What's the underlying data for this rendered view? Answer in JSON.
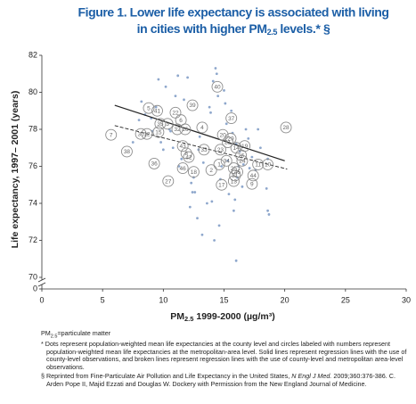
{
  "chart_data": {
    "type": "scatter",
    "title": {
      "line1": "Figure 1. Lower life expectancy is associated with living",
      "line2": "in cities with higher PM",
      "line2_sub": "2.5",
      "line2_end": " levels.* §"
    },
    "x_label": {
      "main": "PM",
      "sub": "2.5",
      "end": " 1999-2000 (µg/m³)"
    },
    "y_label": "Life expectancy, 1997– 2001 (years)",
    "xlim": [
      0,
      30
    ],
    "xticks": [
      0,
      5,
      10,
      15,
      20,
      25,
      30
    ],
    "ylim": [
      70,
      82
    ],
    "yticks": [
      70,
      72,
      74,
      76,
      78,
      80,
      82
    ],
    "y_below_break_tick": 0,
    "dot_color": "#8ea7cc",
    "circle_color": "#8c8c8c",
    "line_color": "#222222",
    "points": {
      "x": [
        8.2,
        8.5,
        9.1,
        9.4,
        9.8,
        10.2,
        10.5,
        10.8,
        11.2,
        11.5,
        11.7,
        12.0,
        12.3,
        12.6,
        12.8,
        13.0,
        13.3,
        13.6,
        13.9,
        14.1,
        14.3,
        14.5,
        14.6,
        14.8,
        15.0,
        15.2,
        15.4,
        15.6,
        15.8,
        16.0,
        16.1,
        16.3,
        16.5,
        16.8,
        17.0,
        17.3,
        17.6,
        18.0,
        18.5,
        18.7,
        9.0,
        10.0,
        11.0,
        12.2,
        13.2,
        14.4,
        14.7,
        15.1,
        15.9,
        16.2,
        17.1,
        18.6,
        18.6,
        12.5,
        12.4,
        15.3,
        16.0,
        14.2,
        13.8,
        11.3,
        10.6,
        8.0,
        7.5,
        9.6,
        16.6,
        17.8,
        14.0,
        15.7,
        12.9
      ],
      "y": [
        79.5,
        78.8,
        77.9,
        79.2,
        77.3,
        80.3,
        78.0,
        77.0,
        80.9,
        76.4,
        79.6,
        80.8,
        75.1,
        74.6,
        73.2,
        77.6,
        76.2,
        74.0,
        78.9,
        80.6,
        81.3,
        79.8,
        72.8,
        76.0,
        80.1,
        78.3,
        74.5,
        79.0,
        73.6,
        77.2,
        75.4,
        76.8,
        74.9,
        78.0,
        77.5,
        76.5,
        75.8,
        77.0,
        74.8,
        73.4,
        78.6,
        76.9,
        79.8,
        73.8,
        72.3,
        81.0,
        75.3,
        79.4,
        74.2,
        76.0,
        75.9,
        76.4,
        73.6,
        75.4,
        74.6,
        76.3,
        70.9,
        72.0,
        79.2,
        76.0,
        77.9,
        78.5,
        77.3,
        80.7,
        76.1,
        78.0,
        74.1,
        77.8,
        76.9
      ]
    },
    "labeled_points": {
      "labels": [
        "40",
        "5",
        "41",
        "39",
        "22",
        "37",
        "6",
        "35",
        "3",
        "28",
        "15",
        "30",
        "12",
        "32",
        "16",
        "4",
        "7",
        "20",
        "29",
        "43",
        "33",
        "38",
        "8",
        "42",
        "23",
        "14",
        "26",
        "19",
        "24",
        "11",
        "10",
        "36",
        "46",
        "2",
        "18",
        "25",
        "31",
        "27",
        "17",
        "13",
        "9",
        "44",
        "34",
        "45",
        "21",
        "1"
      ],
      "x": [
        14.45,
        8.8,
        9.5,
        12.4,
        11.0,
        15.6,
        11.45,
        9.75,
        10.35,
        20.1,
        9.6,
        8.15,
        8.65,
        11.15,
        11.8,
        13.2,
        5.7,
        14.9,
        15.55,
        11.6,
        13.35,
        7.0,
        11.9,
        12.1,
        14.7,
        16.0,
        16.4,
        16.7,
        16.5,
        17.8,
        18.6,
        9.25,
        11.6,
        13.95,
        12.5,
        15.8,
        15.9,
        10.4,
        14.8,
        15.8,
        17.3,
        17.4,
        15.2,
        16.1,
        15.3,
        14.6
      ],
      "y": [
        80.3,
        79.15,
        79.0,
        79.3,
        78.9,
        78.6,
        78.5,
        78.3,
        78.3,
        78.1,
        77.85,
        77.75,
        77.75,
        78.0,
        78.0,
        78.1,
        77.7,
        77.7,
        77.5,
        77.1,
        76.9,
        76.8,
        76.7,
        76.5,
        76.9,
        77.0,
        76.6,
        77.1,
        76.3,
        76.1,
        76.1,
        76.15,
        75.9,
        75.8,
        75.7,
        75.9,
        75.5,
        75.2,
        75.0,
        75.2,
        75.05,
        75.5,
        76.3,
        75.7,
        77.3,
        76.1
      ]
    },
    "regression_lines": [
      {
        "style": "solid",
        "x": [
          6,
          20
        ],
        "y": [
          79.3,
          76.3
        ]
      },
      {
        "style": "dashed",
        "x": [
          6,
          20.2
        ],
        "y": [
          78.2,
          75.85
        ]
      }
    ],
    "footnotes": {
      "abbrev": {
        "main": "PM",
        "sub": "2.5",
        "end": "=particulate matter"
      },
      "star": "* Dots represent population-weighted mean life expectancies at the county level and circles labeled with numbers represent population-weighted mean life expectancies at the metropolitan-area level. Solid lines represent regression lines with the use of county-level observations, and broken lines represent regression lines with the use of county-level and metropolitan area-level observations.",
      "source": {
        "pre": "§ Reprinted from Fine-Particulate Air Pollution and Life Expectancy in the United States, ",
        "italic": "N Engl J Med.",
        "post": " 2009;360:376-386. C. Arden Pope II, Majid Ezzati and Douglas W. Dockery with Permission from the New England Journal of Medicine."
      }
    }
  }
}
